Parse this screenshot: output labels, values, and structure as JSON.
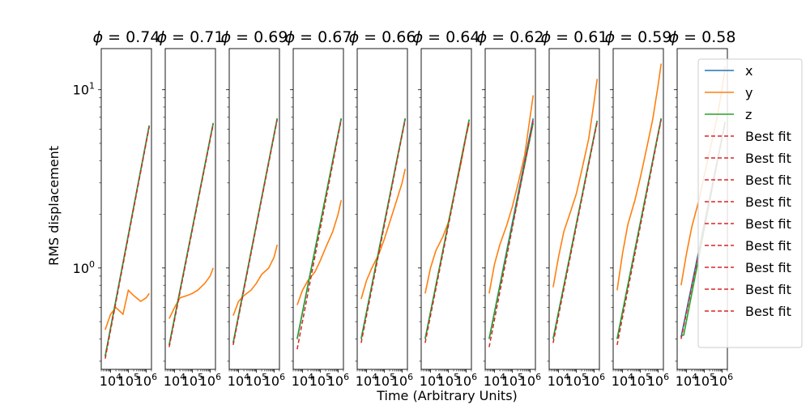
{
  "chart_data": {
    "type": "line",
    "xlabel": "Time (Arbitrary Units)",
    "ylabel": "RMS displacement",
    "xscale": "log",
    "yscale": "log",
    "xlim": [
      3000,
      2000000
    ],
    "ylim": [
      0.27,
      17
    ],
    "x_ticks": [
      {
        "value": 10000,
        "base": "10",
        "exp": "4"
      },
      {
        "value": 100000,
        "base": "10",
        "exp": "5"
      },
      {
        "value": 1000000,
        "base": "10",
        "exp": "6"
      }
    ],
    "y_ticks": [
      {
        "value": 1,
        "base": "10",
        "exp": "0"
      },
      {
        "value": 10,
        "base": "10",
        "exp": "1"
      }
    ],
    "legend": {
      "placement": "right",
      "entries": [
        {
          "label": "x",
          "color": "#1f77b4",
          "style": "solid"
        },
        {
          "label": "y",
          "color": "#ff7f0e",
          "style": "solid"
        },
        {
          "label": "z",
          "color": "#2ca02c",
          "style": "solid"
        },
        {
          "label": "Best fit",
          "color": "#d62728",
          "style": "dashed"
        },
        {
          "label": "Best fit",
          "color": "#d62728",
          "style": "dashed"
        },
        {
          "label": "Best fit",
          "color": "#d62728",
          "style": "dashed"
        },
        {
          "label": "Best fit",
          "color": "#d62728",
          "style": "dashed"
        },
        {
          "label": "Best fit",
          "color": "#d62728",
          "style": "dashed"
        },
        {
          "label": "Best fit",
          "color": "#d62728",
          "style": "dashed"
        },
        {
          "label": "Best fit",
          "color": "#d62728",
          "style": "dashed"
        },
        {
          "label": "Best fit",
          "color": "#d62728",
          "style": "dashed"
        },
        {
          "label": "Best fit",
          "color": "#d62728",
          "style": "dashed"
        }
      ]
    },
    "panels": [
      {
        "title_var": "ϕ",
        "title_value": "0.74",
        "x": {
          "t": [
            5000,
            1500000
          ],
          "v": [
            0.32,
            6.3
          ]
        },
        "z": {
          "t": [
            5000,
            1500000
          ],
          "v": [
            0.32,
            6.3
          ]
        },
        "fit": {
          "t": [
            5000,
            1500000
          ],
          "v": [
            0.31,
            6.2
          ]
        },
        "y": {
          "t": [
            5000,
            10000,
            20000,
            50000,
            100000,
            200000,
            500000,
            1000000,
            1500000
          ],
          "v": [
            0.45,
            0.55,
            0.6,
            0.55,
            0.75,
            0.7,
            0.65,
            0.68,
            0.72
          ]
        }
      },
      {
        "title_var": "ϕ",
        "title_value": "0.71",
        "x": {
          "t": [
            5000,
            1500000
          ],
          "v": [
            0.37,
            6.5
          ]
        },
        "z": {
          "t": [
            5000,
            1500000
          ],
          "v": [
            0.37,
            6.5
          ]
        },
        "fit": {
          "t": [
            5000,
            1500000
          ],
          "v": [
            0.36,
            6.4
          ]
        },
        "y": {
          "t": [
            5000,
            10000,
            20000,
            50000,
            100000,
            200000,
            500000,
            1000000,
            1500000
          ],
          "v": [
            0.52,
            0.6,
            0.68,
            0.7,
            0.72,
            0.75,
            0.82,
            0.9,
            1.0
          ]
        }
      },
      {
        "title_var": "ϕ",
        "title_value": "0.69",
        "x": {
          "t": [
            5000,
            1500000
          ],
          "v": [
            0.38,
            6.9
          ]
        },
        "z": {
          "t": [
            5000,
            1500000
          ],
          "v": [
            0.38,
            6.9
          ]
        },
        "fit": {
          "t": [
            5000,
            1500000
          ],
          "v": [
            0.37,
            6.8
          ]
        },
        "y": {
          "t": [
            5000,
            10000,
            20000,
            50000,
            100000,
            200000,
            500000,
            1000000,
            1500000
          ],
          "v": [
            0.54,
            0.65,
            0.7,
            0.75,
            0.82,
            0.92,
            1.0,
            1.15,
            1.35
          ]
        }
      },
      {
        "title_var": "ϕ",
        "title_value": "0.67",
        "x": {
          "t": [
            5000,
            1500000
          ],
          "v": [
            0.4,
            6.9
          ]
        },
        "z": {
          "t": [
            5000,
            1500000
          ],
          "v": [
            0.4,
            6.9
          ]
        },
        "fit": {
          "t": [
            5000,
            1500000
          ],
          "v": [
            0.35,
            6.8
          ]
        },
        "y": {
          "t": [
            5000,
            10000,
            20000,
            50000,
            100000,
            200000,
            500000,
            1000000,
            1500000
          ],
          "v": [
            0.62,
            0.75,
            0.85,
            0.95,
            1.1,
            1.3,
            1.6,
            2.0,
            2.4
          ]
        }
      },
      {
        "title_var": "ϕ",
        "title_value": "0.66",
        "x": {
          "t": [
            5000,
            1500000
          ],
          "v": [
            0.4,
            6.9
          ]
        },
        "z": {
          "t": [
            5000,
            1500000
          ],
          "v": [
            0.4,
            6.9
          ]
        },
        "fit": {
          "t": [
            5000,
            1500000
          ],
          "v": [
            0.38,
            6.8
          ]
        },
        "y": {
          "t": [
            5000,
            10000,
            20000,
            50000,
            100000,
            200000,
            500000,
            1000000,
            1500000
          ],
          "v": [
            0.67,
            0.85,
            1.0,
            1.2,
            1.45,
            1.8,
            2.4,
            3.0,
            3.6
          ]
        }
      },
      {
        "title_var": "ϕ",
        "title_value": "0.64",
        "x": {
          "t": [
            5000,
            1500000
          ],
          "v": [
            0.4,
            6.8
          ]
        },
        "z": {
          "t": [
            5000,
            1500000
          ],
          "v": [
            0.4,
            6.8
          ]
        },
        "fit": {
          "t": [
            5000,
            1500000
          ],
          "v": [
            0.38,
            6.7
          ]
        },
        "y": {
          "t": [
            5000,
            10000,
            20000,
            50000,
            100000,
            200000,
            500000,
            1000000,
            1500000
          ],
          "v": [
            0.72,
            1.0,
            1.25,
            1.5,
            1.8,
            2.5,
            3.8,
            5.5,
            6.5
          ]
        }
      },
      {
        "title_var": "ϕ",
        "title_value": "0.62",
        "x": {
          "t": [
            5000,
            1500000
          ],
          "v": [
            0.4,
            6.9
          ]
        },
        "z": {
          "t": [
            5000,
            1500000
          ],
          "v": [
            0.4,
            6.5
          ]
        },
        "fit": {
          "t": [
            5000,
            1500000
          ],
          "v": [
            0.36,
            6.7
          ]
        },
        "y": {
          "t": [
            5000,
            10000,
            20000,
            50000,
            100000,
            200000,
            500000,
            1000000,
            1500000
          ],
          "v": [
            0.72,
            1.05,
            1.35,
            1.75,
            2.2,
            2.9,
            4.3,
            7.0,
            9.3
          ]
        }
      },
      {
        "title_var": "ϕ",
        "title_value": "0.61",
        "x": {
          "t": [
            5000,
            1500000
          ],
          "v": [
            0.4,
            6.7
          ]
        },
        "z": {
          "t": [
            5000,
            1500000
          ],
          "v": [
            0.4,
            6.7
          ]
        },
        "fit": {
          "t": [
            5000,
            1500000
          ],
          "v": [
            0.38,
            6.6
          ]
        },
        "y": {
          "t": [
            5000,
            10000,
            20000,
            50000,
            100000,
            200000,
            500000,
            1000000,
            1500000
          ],
          "v": [
            0.78,
            1.15,
            1.6,
            2.1,
            2.6,
            3.5,
            5.3,
            8.5,
            11.5
          ]
        }
      },
      {
        "title_var": "ϕ",
        "title_value": "0.59",
        "x": {
          "t": [
            5000,
            1500000
          ],
          "v": [
            0.4,
            6.9
          ]
        },
        "z": {
          "t": [
            5000,
            1500000
          ],
          "v": [
            0.4,
            6.9
          ]
        },
        "fit": {
          "t": [
            5000,
            1500000
          ],
          "v": [
            0.37,
            6.8
          ]
        },
        "y": {
          "t": [
            5000,
            10000,
            20000,
            50000,
            100000,
            200000,
            500000,
            1000000,
            1500000
          ],
          "v": [
            0.75,
            1.2,
            1.75,
            2.4,
            3.2,
            4.4,
            6.8,
            10.5,
            14.0
          ]
        }
      },
      {
        "title_var": "ϕ",
        "title_value": "0.58",
        "x": {
          "t": [
            5000,
            1500000
          ],
          "v": [
            0.41,
            6.6
          ]
        },
        "z": {
          "t": [
            5000,
            7000,
            1500000
          ],
          "v": [
            0.42,
            0.42,
            6.6
          ]
        },
        "fit": {
          "t": [
            5000,
            1500000
          ],
          "v": [
            0.4,
            6.5
          ]
        },
        "y": {
          "t": [
            5000,
            10000,
            20000,
            50000,
            100000,
            200000,
            500000,
            1000000,
            1500000
          ],
          "v": [
            0.8,
            1.2,
            1.7,
            2.4,
            3.3,
            4.5,
            6.8,
            10.0,
            13.5
          ]
        }
      }
    ]
  }
}
